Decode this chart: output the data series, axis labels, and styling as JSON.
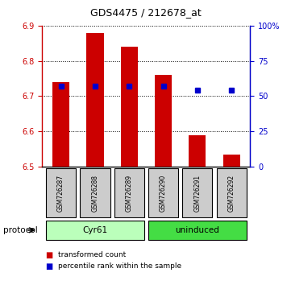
{
  "title": "GDS4475 / 212678_at",
  "samples": [
    "GSM726287",
    "GSM726288",
    "GSM726289",
    "GSM726290",
    "GSM726291",
    "GSM726292"
  ],
  "bar_values": [
    6.74,
    6.88,
    6.84,
    6.76,
    6.59,
    6.535
  ],
  "bar_bottom": 6.5,
  "percentile_values": [
    57,
    57,
    57,
    57,
    54,
    54
  ],
  "left_ylim": [
    6.5,
    6.9
  ],
  "right_ylim": [
    0,
    100
  ],
  "left_yticks": [
    6.5,
    6.6,
    6.7,
    6.8,
    6.9
  ],
  "right_yticks": [
    0,
    25,
    50,
    75,
    100
  ],
  "right_yticklabels": [
    "0",
    "25",
    "50",
    "75",
    "100%"
  ],
  "bar_color": "#cc0000",
  "blue_color": "#0000cc",
  "protocol_groups": [
    {
      "label": "Cyr61",
      "indices": [
        0,
        1,
        2
      ],
      "color": "#bbffbb"
    },
    {
      "label": "uninduced",
      "indices": [
        3,
        4,
        5
      ],
      "color": "#44dd44"
    }
  ],
  "protocol_label": "protocol",
  "legend_items": [
    {
      "label": "transformed count",
      "color": "#cc0000"
    },
    {
      "label": "percentile rank within the sample",
      "color": "#0000cc"
    }
  ],
  "sample_box_color": "#cccccc",
  "bar_width": 0.5
}
